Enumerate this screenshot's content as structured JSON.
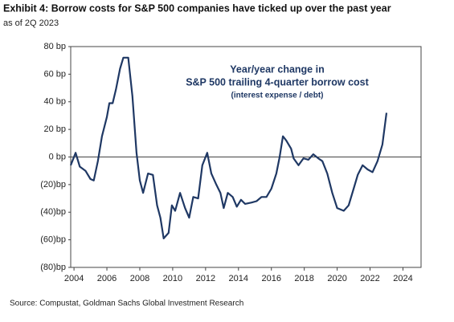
{
  "chart_data": {
    "type": "line",
    "title": "Exhibit 4: Borrow costs for S&P 500 companies have ticked up over the past year",
    "subtitle": "as of 2Q 2023",
    "annotation": [
      "Year/year change in",
      "S&P 500 trailing 4-quarter borrow cost",
      "(interest expense / debt)"
    ],
    "source": "Source: Compustat, Goldman Sachs Global Investment Research",
    "x": [
      2003.8,
      2004.1,
      2004.35,
      2004.7,
      2005.0,
      2005.2,
      2005.45,
      2005.7,
      2006.0,
      2006.15,
      2006.35,
      2006.55,
      2006.8,
      2007.0,
      2007.3,
      2007.55,
      2007.8,
      2008.0,
      2008.2,
      2008.5,
      2008.8,
      2009.05,
      2009.25,
      2009.45,
      2009.75,
      2009.95,
      2010.15,
      2010.45,
      2010.75,
      2011.0,
      2011.25,
      2011.55,
      2011.8,
      2012.1,
      2012.35,
      2012.65,
      2012.9,
      2013.1,
      2013.35,
      2013.65,
      2013.9,
      2014.15,
      2014.4,
      2014.8,
      2015.1,
      2015.4,
      2015.7,
      2016.0,
      2016.3,
      2016.5,
      2016.7,
      2016.9,
      2017.2,
      2017.35,
      2017.65,
      2017.95,
      2018.25,
      2018.55,
      2018.85,
      2019.1,
      2019.4,
      2019.7,
      2020.0,
      2020.4,
      2020.7,
      2021.0,
      2021.25,
      2021.55,
      2021.85,
      2022.15,
      2022.45,
      2022.75,
      2023.0
    ],
    "series": [
      {
        "name": "S&P 500 trailing 4-quarter borrow cost",
        "color": "#1f3864",
        "values": [
          -6,
          3,
          -7,
          -10,
          -16,
          -17,
          -3,
          15,
          29,
          39,
          39,
          49,
          64,
          72,
          72,
          44,
          3,
          -17,
          -26,
          -12,
          -13,
          -35,
          -44,
          -59,
          -55,
          -35,
          -39,
          -26,
          -37,
          -44,
          -29,
          -30,
          -6,
          3,
          -12,
          -20,
          -26,
          -37,
          -26,
          -29,
          -36,
          -31,
          -34,
          -33,
          -32,
          -29,
          -29,
          -23,
          -12,
          0,
          15,
          12,
          6,
          -1,
          -6,
          -1,
          -2,
          2,
          -1,
          -3,
          -12,
          -26,
          -37,
          -39,
          -35,
          -23,
          -13,
          -6,
          -9,
          -11,
          -3,
          9,
          32
        ]
      }
    ],
    "xlim": [
      2003.8,
      2025.1
    ],
    "xticks": [
      2004,
      2006,
      2008,
      2010,
      2012,
      2014,
      2016,
      2018,
      2020,
      2022,
      2024
    ],
    "ylim": [
      -80,
      80
    ],
    "yticks": [
      {
        "value": 80,
        "label": "80 bp"
      },
      {
        "value": 60,
        "label": "60 bp"
      },
      {
        "value": 40,
        "label": "40 bp"
      },
      {
        "value": 20,
        "label": "20 bp"
      },
      {
        "value": 0,
        "label": "0 bp"
      },
      {
        "value": -20,
        "label": "(20)bp"
      },
      {
        "value": -40,
        "label": "(40)bp"
      },
      {
        "value": -60,
        "label": "(60)bp"
      },
      {
        "value": -80,
        "label": "(80)bp"
      }
    ]
  }
}
